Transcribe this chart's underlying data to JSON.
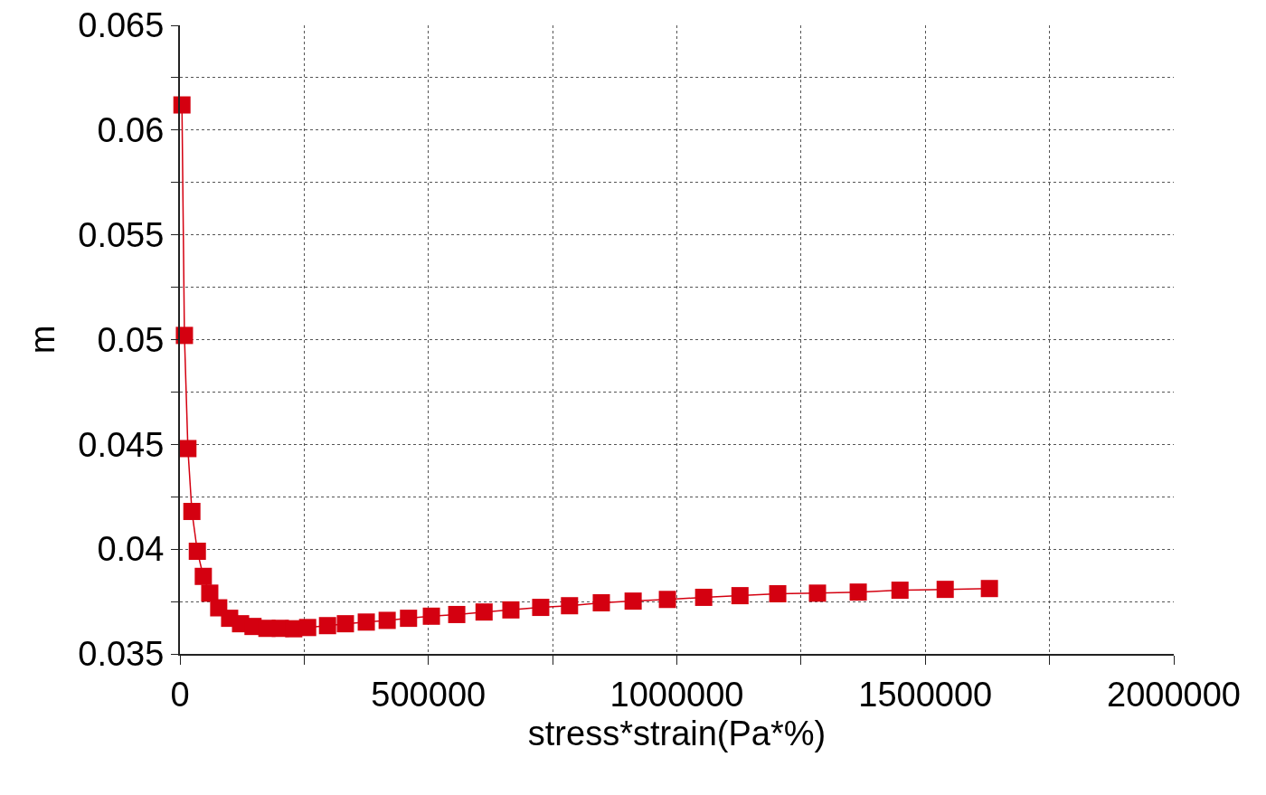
{
  "chart_data": {
    "type": "line",
    "xlabel": "stress*strain(Pa*%)",
    "ylabel": "m",
    "x": [
      4000,
      9000,
      16000,
      24000,
      35000,
      47000,
      60000,
      78000,
      100000,
      122000,
      147000,
      175000,
      202000,
      229000,
      257000,
      297000,
      333000,
      375000,
      417000,
      460000,
      506000,
      557000,
      612000,
      666000,
      726000,
      784000,
      848000,
      912000,
      981000,
      1054000,
      1127000,
      1203000,
      1283000,
      1365000,
      1449000,
      1540000,
      1629000
    ],
    "series": [
      {
        "color": "#d40010",
        "values": [
          0.0612,
          0.0502,
          0.0448,
          0.0418,
          0.0399,
          0.0387,
          0.0379,
          0.0372,
          0.0367,
          0.03644,
          0.03631,
          0.03622,
          0.03622,
          0.0362,
          0.03626,
          0.03635,
          0.03644,
          0.03652,
          0.0366,
          0.0367,
          0.0368,
          0.03688,
          0.037,
          0.0371,
          0.03722,
          0.0373,
          0.03744,
          0.03752,
          0.0376,
          0.0377,
          0.03778,
          0.03787,
          0.0379,
          0.03795,
          0.03804,
          0.03808,
          0.03812
        ]
      }
    ],
    "xlim": [
      0,
      2000000
    ],
    "xticks": [
      0,
      {
        "value": 250000,
        "label": null
      },
      500000,
      {
        "value": 750000,
        "label": null
      },
      1000000,
      {
        "value": 1250000,
        "label": null
      },
      1500000,
      {
        "value": 1750000,
        "label": null
      },
      2000000
    ],
    "ylim": [
      0.035,
      0.065
    ],
    "yticks": [
      0.035,
      {
        "value": 0.0375,
        "label": null
      },
      0.04,
      {
        "value": 0.0425,
        "label": null
      },
      0.045,
      {
        "value": 0.0475,
        "label": null
      },
      0.05,
      {
        "value": 0.0525,
        "label": null
      },
      0.055,
      {
        "value": 0.0575,
        "label": null
      },
      0.06,
      {
        "value": 0.0625,
        "label": null
      },
      0.065
    ],
    "grid": true,
    "marker": "square",
    "line_style": "solid"
  }
}
